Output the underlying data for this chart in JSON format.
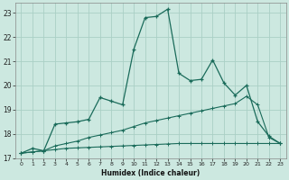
{
  "bg_color": "#cce8e0",
  "grid_color": "#aacfc5",
  "line_color": "#1a6b5a",
  "xlabel": "Humidex (Indice chaleur)",
  "xlim": [
    -0.5,
    23.5
  ],
  "ylim": [
    17,
    23.4
  ],
  "yticks": [
    17,
    18,
    19,
    20,
    21,
    22,
    23
  ],
  "xticks": [
    0,
    1,
    2,
    3,
    4,
    5,
    6,
    7,
    8,
    9,
    10,
    11,
    12,
    13,
    14,
    15,
    16,
    17,
    18,
    19,
    20,
    21,
    22,
    23
  ],
  "series1_x": [
    0,
    1,
    2,
    3,
    4,
    5,
    6,
    7,
    8,
    9,
    10,
    11,
    12,
    13,
    14,
    15,
    16,
    17,
    18,
    19,
    20,
    21,
    22,
    23
  ],
  "series1_y": [
    17.2,
    17.4,
    17.3,
    18.4,
    18.45,
    18.5,
    18.6,
    19.5,
    19.35,
    19.2,
    21.5,
    22.8,
    22.85,
    23.15,
    20.5,
    20.2,
    20.25,
    21.05,
    20.1,
    19.6,
    20.0,
    18.5,
    17.9,
    17.6
  ],
  "series2_x": [
    0,
    1,
    2,
    3,
    4,
    5,
    6,
    7,
    8,
    9,
    10,
    11,
    12,
    13,
    14,
    15,
    16,
    17,
    18,
    19,
    20,
    21,
    22,
    23
  ],
  "series2_y": [
    17.2,
    17.25,
    17.3,
    17.5,
    17.6,
    17.7,
    17.85,
    17.95,
    18.05,
    18.15,
    18.3,
    18.45,
    18.55,
    18.65,
    18.75,
    18.85,
    18.95,
    19.05,
    19.15,
    19.25,
    19.55,
    19.2,
    17.85,
    17.6
  ],
  "series3_x": [
    0,
    1,
    2,
    3,
    4,
    5,
    6,
    7,
    8,
    9,
    10,
    11,
    12,
    13,
    14,
    15,
    16,
    17,
    18,
    19,
    20,
    21,
    22,
    23
  ],
  "series3_y": [
    17.2,
    17.25,
    17.3,
    17.35,
    17.4,
    17.42,
    17.44,
    17.46,
    17.48,
    17.5,
    17.52,
    17.54,
    17.56,
    17.58,
    17.6,
    17.6,
    17.6,
    17.6,
    17.6,
    17.6,
    17.6,
    17.6,
    17.6,
    17.6
  ]
}
